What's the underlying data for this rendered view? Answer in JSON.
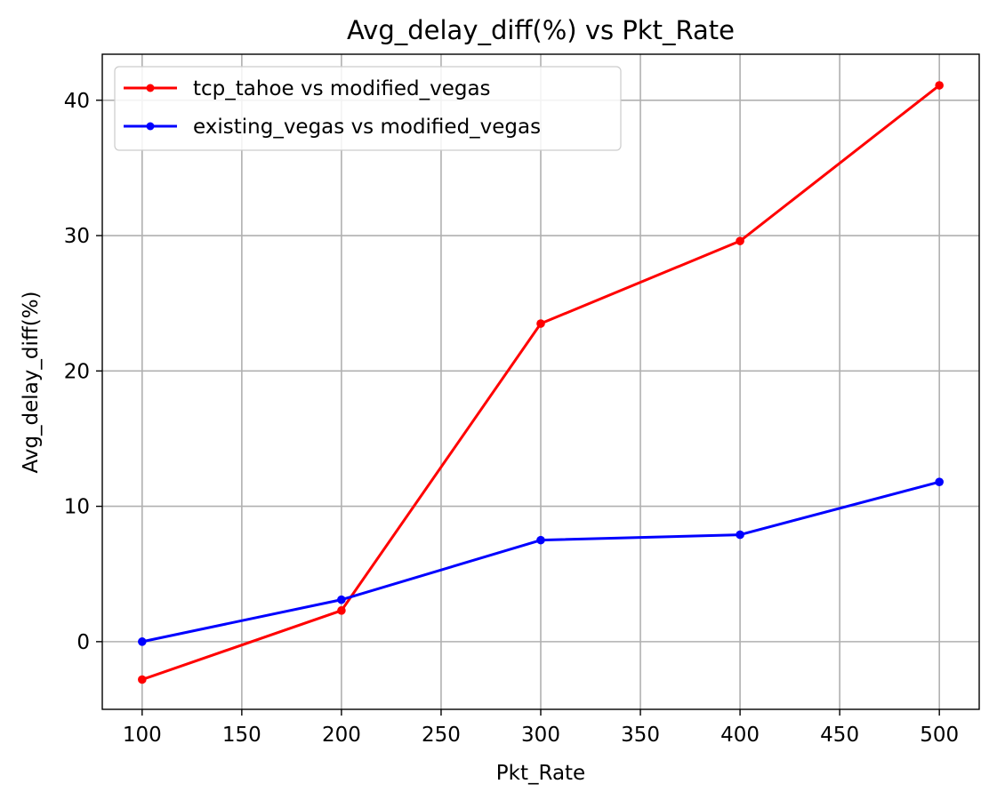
{
  "chart_data": {
    "type": "line",
    "title": "Avg_delay_diff(%) vs Pkt_Rate",
    "xlabel": "Pkt_Rate",
    "ylabel": "Avg_delay_diff(%)",
    "x": [
      100,
      200,
      300,
      400,
      500
    ],
    "xlim": [
      80,
      520
    ],
    "ylim": [
      -5,
      43.4
    ],
    "xticks": [
      100,
      150,
      200,
      250,
      300,
      350,
      400,
      450,
      500
    ],
    "yticks": [
      0,
      10,
      20,
      30,
      40
    ],
    "grid": true,
    "legend_position": "top-left",
    "series": [
      {
        "name": "tcp_tahoe vs modified_vegas",
        "color": "#ff0000",
        "values": [
          -2.8,
          2.3,
          23.5,
          29.6,
          41.1
        ]
      },
      {
        "name": "existing_vegas vs modified_vegas",
        "color": "#0000ff",
        "values": [
          0.0,
          3.1,
          7.5,
          7.9,
          11.8
        ]
      }
    ]
  }
}
